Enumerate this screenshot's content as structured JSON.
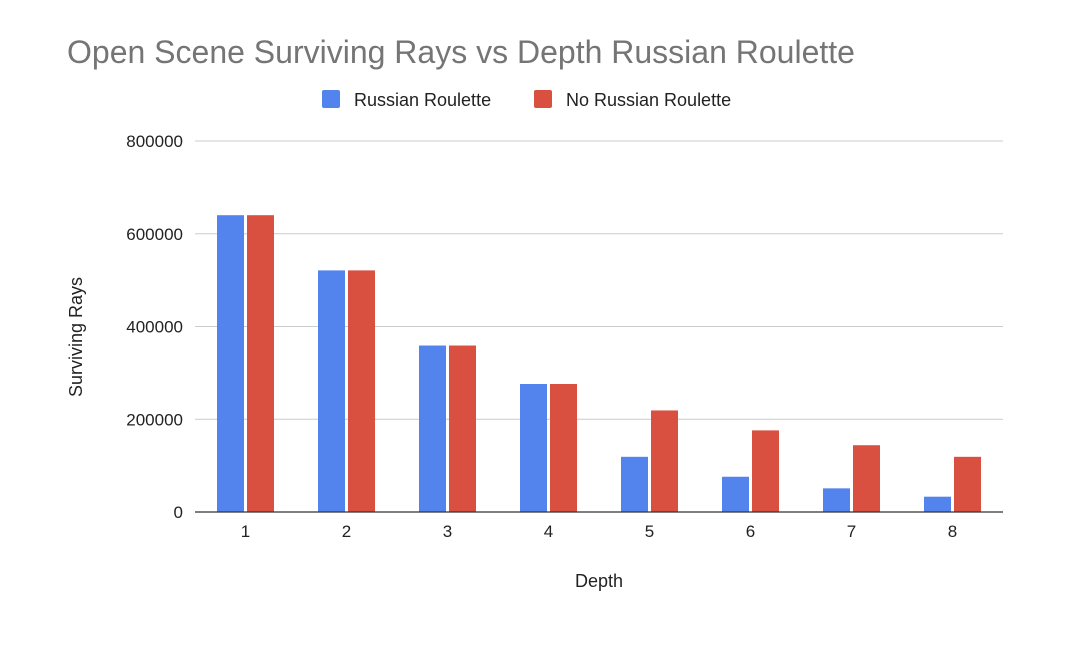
{
  "chart_data": {
    "type": "bar",
    "title": "Open Scene Surviving Rays vs Depth Russian Roulette",
    "xlabel": "Depth",
    "ylabel": "Surviving Rays",
    "categories": [
      "1",
      "2",
      "3",
      "4",
      "5",
      "6",
      "7",
      "8"
    ],
    "series": [
      {
        "name": "Russian Roulette",
        "color": "#5384ed",
        "values": [
          640000,
          521000,
          359000,
          276000,
          119000,
          76000,
          51000,
          33000
        ]
      },
      {
        "name": "No Russian Roulette",
        "color": "#d95040",
        "values": [
          640000,
          521000,
          359000,
          276000,
          219000,
          176000,
          144000,
          119000
        ]
      }
    ],
    "ylim": [
      0,
      800000
    ],
    "yticks": [
      "0",
      "200000",
      "400000",
      "600000",
      "800000"
    ],
    "grid": true,
    "legend_position": "top-center"
  }
}
